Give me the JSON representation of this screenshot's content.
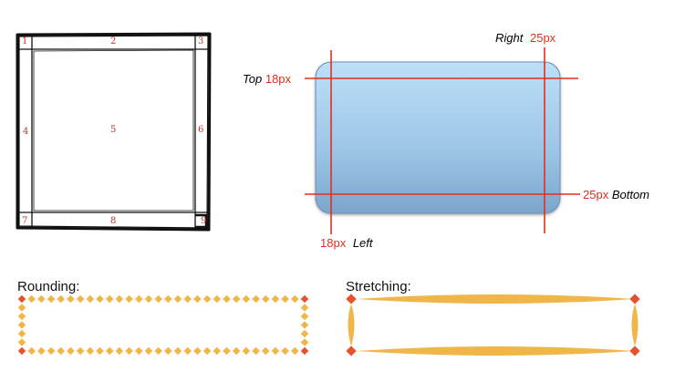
{
  "sketch": {
    "cells": [
      "1",
      "2",
      "3",
      "4",
      "5",
      "6",
      "7",
      "8",
      "9"
    ]
  },
  "slice_diagram": {
    "top_word": "Top",
    "top_value": "18px",
    "right_word": "Right",
    "right_value": "25px",
    "bottom_value": "25px",
    "bottom_word": "Bottom",
    "left_value": "18px",
    "left_word": "Left",
    "colors": {
      "fill_top": "#b8dcf6",
      "fill_bottom": "#7fa9cf",
      "guide": "#e0301e"
    }
  },
  "rounding": {
    "heading": "Rounding:"
  },
  "stretching": {
    "heading": "Stretching:"
  },
  "colors": {
    "diamond": "#f1b649",
    "corner": "#e5532e"
  }
}
